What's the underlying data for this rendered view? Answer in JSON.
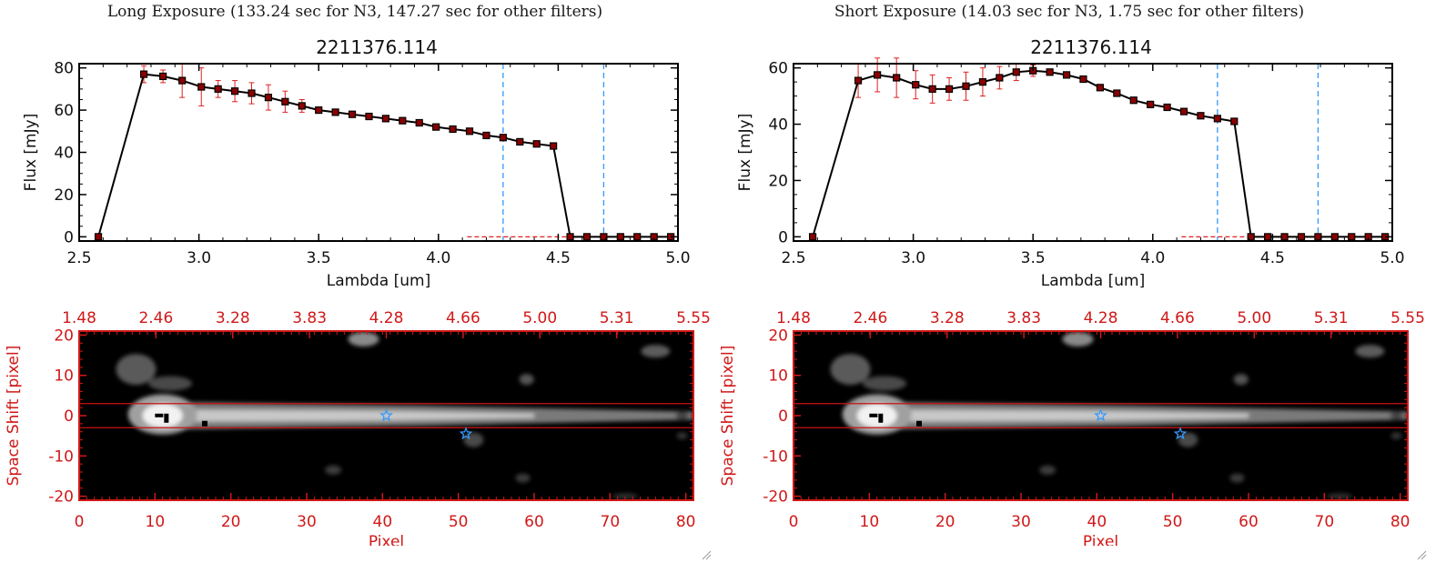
{
  "panels": [
    {
      "exposure_title": "Long Exposure (133.24 sec for N3, 147.27 sec for other filters)",
      "plot_title": "2211376.114",
      "spectrum_y_ticks": [
        "0",
        "20",
        "40",
        "60",
        "80"
      ]
    },
    {
      "exposure_title": "Short Exposure (14.03 sec for N3, 1.75 sec for other filters)",
      "plot_title": "2211376.114",
      "spectrum_y_ticks": [
        "0",
        "20",
        "40",
        "60"
      ]
    }
  ],
  "chart_data": [
    {
      "type": "line",
      "title": "2211376.114",
      "xlabel": "Lambda [um]",
      "ylabel": "Flux [mJy]",
      "xlim": [
        2.5,
        5.0
      ],
      "ylim": [
        -2,
        82
      ],
      "x_ticks": [
        "2.5",
        "3.0",
        "3.5",
        "4.0",
        "4.5",
        "5.0"
      ],
      "vlines": [
        4.27,
        4.69
      ],
      "colors": {
        "line": "#000000",
        "marker": "#8b0000",
        "error": "#e02020",
        "vline": "#3399ff",
        "zero": "#e02020"
      },
      "series": [
        {
          "x": [
            2.58,
            2.77,
            2.85,
            2.93,
            3.01,
            3.08,
            3.15,
            3.22,
            3.29,
            3.36,
            3.43,
            3.5,
            3.57,
            3.64,
            3.71,
            3.78,
            3.85,
            3.92,
            3.99,
            4.06,
            4.13,
            4.2,
            4.27,
            4.34,
            4.41,
            4.48,
            4.55,
            4.62,
            4.69,
            4.76,
            4.83,
            4.9,
            4.97
          ],
          "y": [
            0,
            77,
            76,
            74,
            71,
            70,
            69,
            68,
            66,
            64,
            62,
            60,
            59,
            58,
            57,
            56,
            55,
            54,
            52,
            51,
            50,
            48,
            47,
            45,
            44,
            43,
            0,
            0,
            0,
            0,
            0,
            0,
            0
          ],
          "yerr": [
            0,
            4,
            3,
            8,
            9,
            4,
            5,
            5,
            6,
            5,
            3,
            1.5,
            1,
            1,
            1,
            1,
            1,
            1,
            1,
            1,
            1,
            1,
            1,
            1,
            1,
            1,
            0,
            0,
            0,
            0,
            0,
            0,
            0
          ]
        }
      ]
    },
    {
      "type": "line",
      "title": "2211376.114",
      "xlabel": "Lambda [um]",
      "ylabel": "Flux [mJy]",
      "xlim": [
        2.5,
        5.0
      ],
      "ylim": [
        -1.5,
        61.5
      ],
      "x_ticks": [
        "2.5",
        "3.0",
        "3.5",
        "4.0",
        "4.5",
        "5.0"
      ],
      "vlines": [
        4.27,
        4.69
      ],
      "colors": {
        "line": "#000000",
        "marker": "#8b0000",
        "error": "#e02020",
        "vline": "#3399ff",
        "zero": "#e02020"
      },
      "series": [
        {
          "x": [
            2.58,
            2.77,
            2.85,
            2.93,
            3.01,
            3.08,
            3.15,
            3.22,
            3.29,
            3.36,
            3.43,
            3.5,
            3.57,
            3.64,
            3.71,
            3.78,
            3.85,
            3.92,
            3.99,
            4.06,
            4.13,
            4.2,
            4.27,
            4.34,
            4.41,
            4.48,
            4.55,
            4.62,
            4.69,
            4.76,
            4.83,
            4.9,
            4.97
          ],
          "y": [
            0,
            55.5,
            57.5,
            56.5,
            54,
            52.5,
            52.5,
            53.5,
            55,
            56.5,
            58.5,
            59,
            58.5,
            57.5,
            56,
            53,
            51,
            48.5,
            47,
            46,
            44.5,
            43,
            42,
            41,
            0,
            0,
            0,
            0,
            0,
            0,
            0,
            0,
            0
          ],
          "yerr": [
            0,
            6,
            6,
            7,
            5,
            5,
            4,
            5,
            5,
            4,
            3,
            2,
            1,
            1,
            1,
            1,
            1,
            1,
            1,
            1,
            1,
            1,
            1,
            1,
            0,
            0,
            0,
            0,
            0,
            0,
            0,
            0,
            0
          ]
        }
      ]
    },
    {
      "type": "heatmap",
      "xlabel": "Pixel",
      "ylabel": "Space Shift [pixel]",
      "xlim": [
        0,
        81
      ],
      "ylim": [
        -21,
        21
      ],
      "x_ticks": [
        "0",
        "10",
        "20",
        "30",
        "40",
        "50",
        "60",
        "70",
        "80"
      ],
      "y_ticks": [
        "-20",
        "-10",
        "0",
        "10",
        "20"
      ],
      "top_ticks": [
        "1.48",
        "2.46",
        "3.28",
        "3.83",
        "4.28",
        "4.66",
        "5.00",
        "5.31",
        "5.55"
      ],
      "aperture_lines": [
        3,
        -3
      ],
      "star_markers": [
        [
          40.5,
          0
        ],
        [
          51,
          -4.5
        ]
      ],
      "colors": {
        "axis": "#d01818",
        "star": "#3399ff",
        "aperture": "#cc1111"
      }
    },
    {
      "type": "heatmap",
      "xlabel": "Pixel",
      "ylabel": "Space Shift [pixel]",
      "xlim": [
        0,
        81
      ],
      "ylim": [
        -21,
        21
      ],
      "x_ticks": [
        "0",
        "10",
        "20",
        "30",
        "40",
        "50",
        "60",
        "70",
        "80"
      ],
      "y_ticks": [
        "-20",
        "-10",
        "0",
        "10",
        "20"
      ],
      "top_ticks": [
        "1.48",
        "2.46",
        "3.28",
        "3.83",
        "4.28",
        "4.66",
        "5.00",
        "5.31",
        "5.55"
      ],
      "aperture_lines": [
        3,
        -3
      ],
      "star_markers": [
        [
          40.5,
          0
        ],
        [
          51,
          -4.5
        ]
      ],
      "colors": {
        "axis": "#d01818",
        "star": "#3399ff",
        "aperture": "#cc1111"
      }
    }
  ]
}
